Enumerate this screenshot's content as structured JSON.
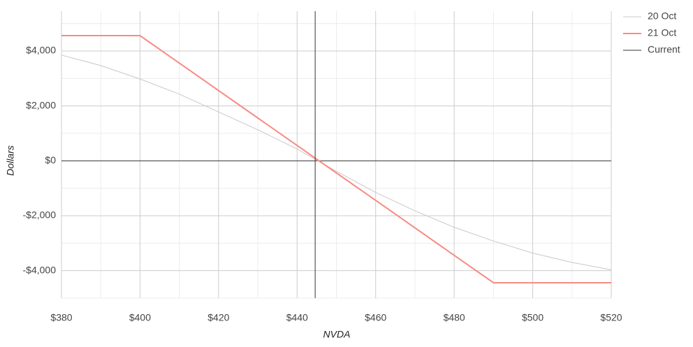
{
  "chart_data": {
    "type": "line",
    "x_label": "NVDA",
    "y_label": "Dollars",
    "x": [
      380,
      390,
      400,
      410,
      420,
      430,
      440,
      450,
      460,
      470,
      480,
      490,
      500,
      510,
      520
    ],
    "series": [
      {
        "name": "20 Oct",
        "color": "#c8c8c8",
        "values": [
          3850,
          3470,
          2980,
          2430,
          1780,
          1130,
          430,
          -380,
          -1150,
          -1820,
          -2420,
          -2920,
          -3360,
          -3700,
          -3970
        ]
      },
      {
        "name": "21 Oct",
        "color": "#f88a84",
        "values": [
          4560,
          4560,
          4560,
          3560,
          2560,
          1560,
          560,
          -440,
          -1440,
          -2440,
          -3440,
          -4440,
          -4440,
          -4440,
          -4440
        ]
      }
    ],
    "current": {
      "name": "Current",
      "color": "#333333",
      "value": 444.6
    },
    "xlim": [
      380,
      520
    ],
    "ylim": [
      -5000,
      5450
    ],
    "xticks": [
      {
        "value": 380,
        "label": "$380"
      },
      {
        "value": 400,
        "label": "$400"
      },
      {
        "value": 420,
        "label": "$420"
      },
      {
        "value": 440,
        "label": "$440"
      },
      {
        "value": 460,
        "label": "$460"
      },
      {
        "value": 480,
        "label": "$480"
      },
      {
        "value": 500,
        "label": "$500"
      },
      {
        "value": 520,
        "label": "$520"
      }
    ],
    "yticks": [
      {
        "value": -4000,
        "label": "-$4,000"
      },
      {
        "value": -2000,
        "label": "-$2,000"
      },
      {
        "value": 0,
        "label": "$0"
      },
      {
        "value": 2000,
        "label": "$2,000"
      },
      {
        "value": 4000,
        "label": "$4,000"
      }
    ],
    "xminor": [
      390,
      410,
      430,
      450,
      470,
      490,
      510
    ],
    "yminor": [
      -5000,
      -3000,
      -1000,
      1000,
      3000,
      5000
    ],
    "grid": true,
    "legend": "top-right"
  }
}
